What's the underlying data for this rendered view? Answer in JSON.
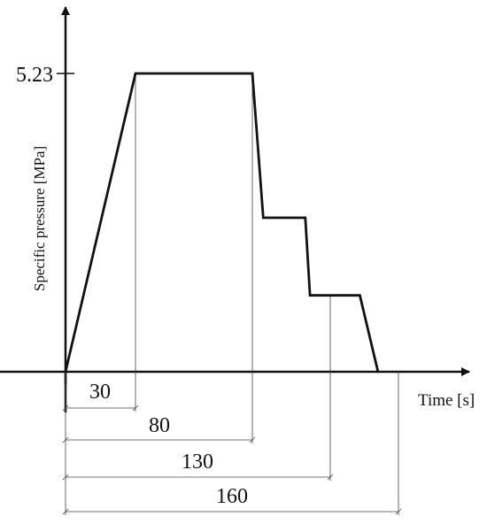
{
  "chart_data": {
    "type": "line",
    "title": "",
    "xlabel": "Time [s]",
    "ylabel": "Specific pressure [MPa]",
    "y_tick_labels": [
      "5.23"
    ],
    "dimension_labels": [
      "30",
      "80",
      "130",
      "160"
    ],
    "points": [
      {
        "x": 0,
        "y": 0
      },
      {
        "x": 30,
        "y": 5.23
      },
      {
        "x": 80,
        "y": 5.23
      },
      {
        "x": 87,
        "y": 2.7
      },
      {
        "x": 114,
        "y": 2.7
      },
      {
        "x": 117,
        "y": 1.34
      },
      {
        "x": 143,
        "y": 1.34
      },
      {
        "x": 151,
        "y": 0
      }
    ],
    "dimension_markers": [
      30,
      80,
      130,
      160
    ],
    "grid": false,
    "legend": "none"
  }
}
